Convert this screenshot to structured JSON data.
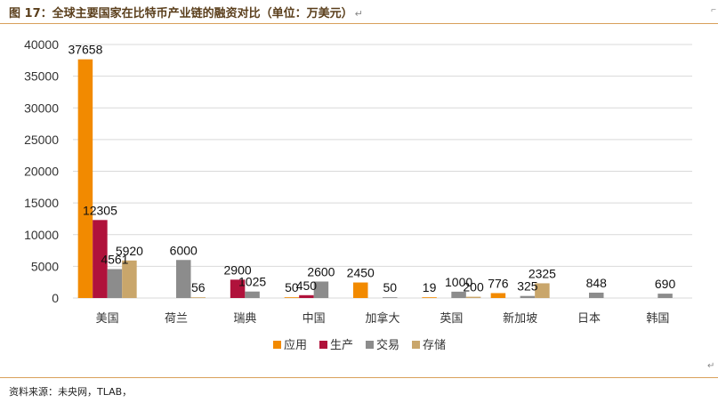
{
  "header": {
    "title": "图 17：全球主要国家在比特币产业链的融资对比（单位：万美元）",
    "para_mark": "↵"
  },
  "footer": {
    "source": "资料来源：未央网，TLAB，"
  },
  "chart_data": {
    "type": "bar",
    "categories": [
      "美国",
      "荷兰",
      "瑞典",
      "中国",
      "加拿大",
      "英国",
      "新加坡",
      "日本",
      "韩国"
    ],
    "series": [
      {
        "name": "应用",
        "color": "#f28a00",
        "values": [
          37658,
          null,
          null,
          50,
          2450,
          19,
          776,
          null,
          null
        ]
      },
      {
        "name": "生产",
        "color": "#b0123b",
        "values": [
          12305,
          null,
          2900,
          450,
          null,
          null,
          null,
          null,
          null
        ]
      },
      {
        "name": "交易",
        "color": "#8c8c8c",
        "values": [
          4561,
          6000,
          1025,
          2600,
          50,
          1000,
          325,
          848,
          690
        ]
      },
      {
        "name": "存储",
        "color": "#c9a66b",
        "values": [
          5920,
          56,
          null,
          null,
          null,
          200,
          2325,
          null,
          null
        ]
      }
    ],
    "yticks": [
      0,
      5000,
      10000,
      15000,
      20000,
      25000,
      30000,
      35000,
      40000
    ],
    "ylim": [
      0,
      40000
    ],
    "grid": true,
    "legend": "bottom",
    "title": "",
    "xlabel": "",
    "ylabel": ""
  }
}
